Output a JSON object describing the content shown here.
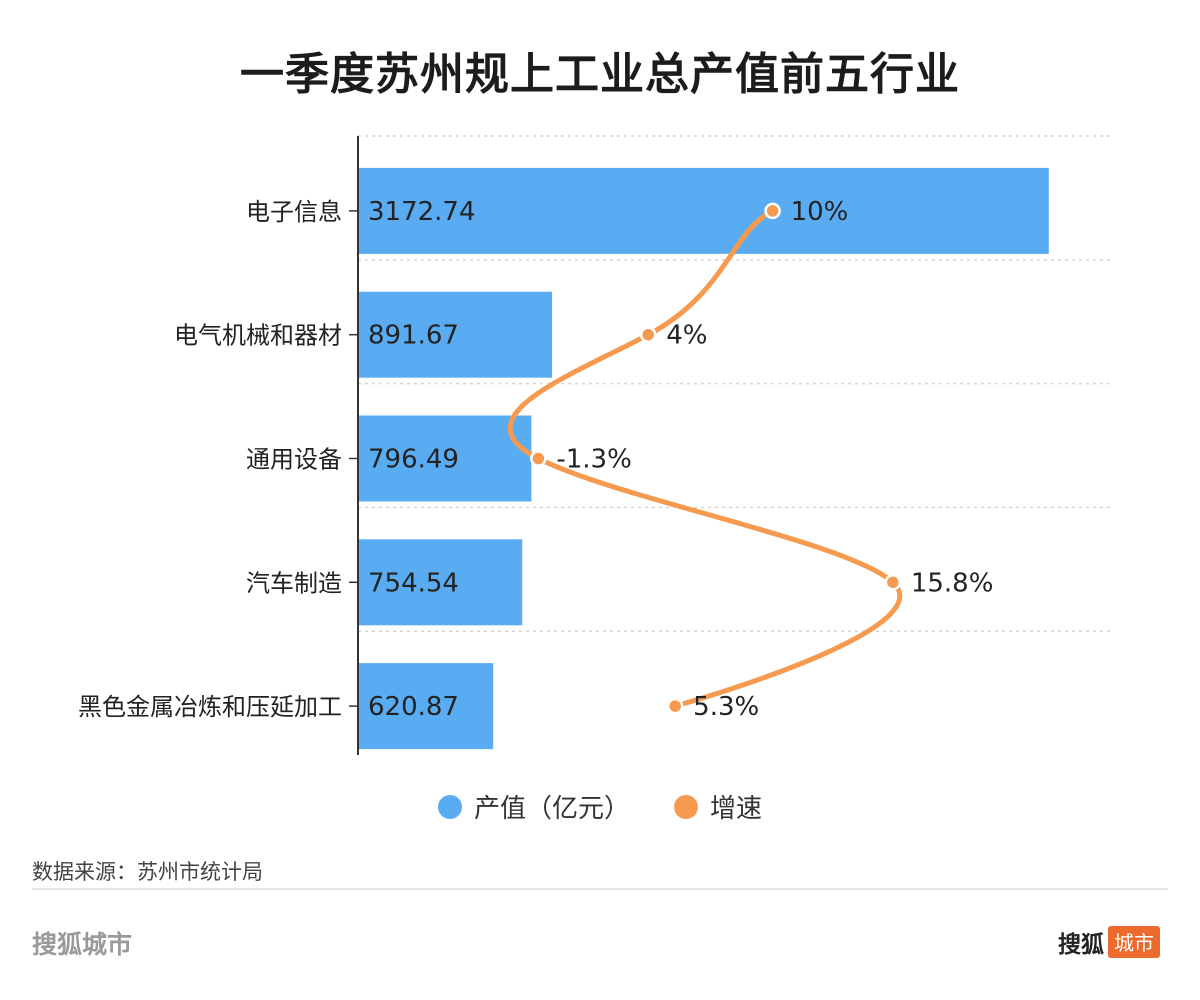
{
  "title": "一季度苏州规上工业总产值前五行业",
  "legend": {
    "value_label": "产值（亿元）",
    "growth_label": "增速"
  },
  "source": "数据来源：苏州市统计局",
  "brand": {
    "left": "搜狐城市",
    "right_main": "搜狐",
    "right_tag": "城市"
  },
  "colors": {
    "bar": "#5aacf2",
    "line": "#f59a4e",
    "grid": "#d6d6d6",
    "axis": "#333333"
  },
  "chart_data": {
    "type": "bar",
    "orientation": "horizontal",
    "categories": [
      "电子信息",
      "电气机械和器材",
      "通用设备",
      "汽车制造",
      "黑色金属冶炼和压延加工"
    ],
    "series": [
      {
        "name": "产值（亿元）",
        "type": "bar",
        "values": [
          3172.74,
          891.67,
          796.49,
          754.54,
          620.87
        ],
        "labels": [
          "3172.74",
          "891.67",
          "796.49",
          "754.54",
          "620.87"
        ]
      },
      {
        "name": "增速",
        "type": "line",
        "smooth": true,
        "values": [
          10,
          4,
          -1.3,
          15.8,
          5.3
        ],
        "labels": [
          "10%",
          "4%",
          "-1.3%",
          "15.8%",
          "5.3%"
        ]
      }
    ],
    "xlim": [
      0,
      3200
    ],
    "growth_range": [
      -10,
      20
    ],
    "grid": true,
    "legend_position": "bottom"
  }
}
